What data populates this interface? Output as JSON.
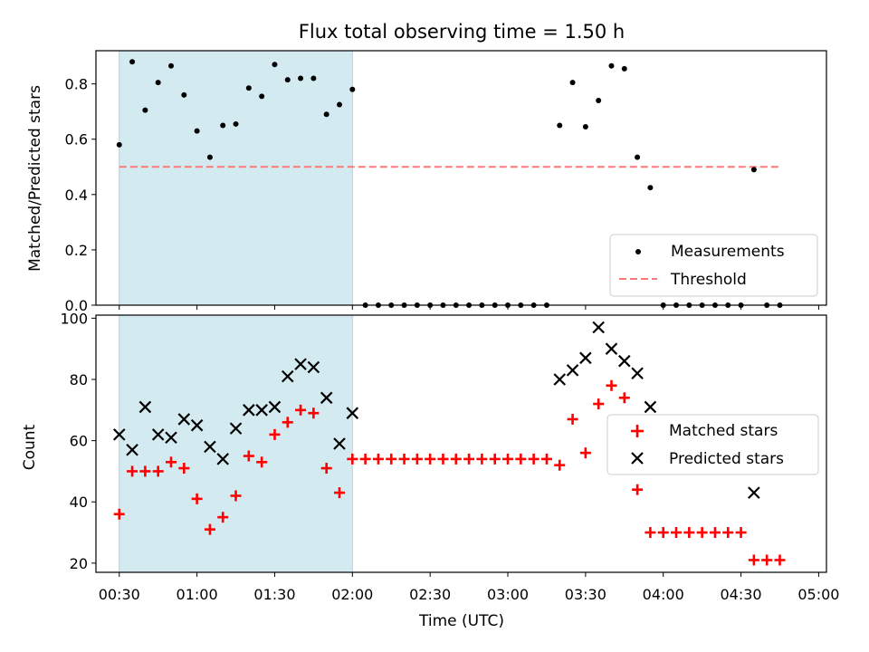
{
  "chart_data": [
    {
      "type": "scatter",
      "title": "Flux total observing time = 1.50 h",
      "xlabel": "",
      "ylabel": "Matched/Predicted stars",
      "ylim": [
        0,
        0.92
      ],
      "x_axis": "time",
      "x_range": [
        "00:21",
        "05:03"
      ],
      "highlight_span": [
        "00:30",
        "02:00"
      ],
      "highlight_color": "#d4eaf1",
      "series": [
        {
          "name": "Measurements",
          "marker": "dot",
          "color": "#000000",
          "x": [
            "00:30",
            "00:35",
            "00:40",
            "00:45",
            "00:50",
            "00:55",
            "01:00",
            "01:05",
            "01:10",
            "01:15",
            "01:20",
            "01:25",
            "01:30",
            "01:35",
            "01:40",
            "01:45",
            "01:50",
            "01:55",
            "02:00",
            "02:05",
            "02:10",
            "02:15",
            "02:20",
            "02:25",
            "02:30",
            "02:35",
            "02:40",
            "02:45",
            "02:50",
            "02:55",
            "03:00",
            "03:05",
            "03:10",
            "03:15",
            "03:20",
            "03:25",
            "03:30",
            "03:35",
            "03:40",
            "03:45",
            "03:50",
            "03:55",
            "04:00",
            "04:05",
            "04:10",
            "04:15",
            "04:20",
            "04:25",
            "04:30",
            "04:35",
            "04:40",
            "04:45"
          ],
          "y": [
            0.58,
            0.88,
            0.705,
            0.805,
            0.865,
            0.76,
            0.63,
            0.535,
            0.65,
            0.655,
            0.785,
            0.755,
            0.87,
            0.815,
            0.82,
            0.82,
            0.69,
            0.725,
            0.78,
            0,
            0,
            0,
            0,
            0,
            0,
            0,
            0,
            0,
            0,
            0,
            0,
            0,
            0,
            0,
            0.65,
            0.805,
            0.645,
            0.74,
            0.865,
            0.855,
            0.535,
            0.425,
            0,
            0,
            0,
            0,
            0,
            0,
            0,
            0.49,
            0,
            0
          ]
        },
        {
          "name": "Threshold",
          "style": "dashed",
          "color": "#ff7878",
          "x": [
            "00:30",
            "04:45"
          ],
          "y": [
            0.5,
            0.5
          ]
        }
      ],
      "legend": "lower-right",
      "legend_entries": [
        "Measurements",
        "Threshold"
      ]
    },
    {
      "type": "scatter",
      "title": "",
      "xlabel": "Time (UTC)",
      "ylabel": "Count",
      "ylim": [
        17,
        101
      ],
      "x_axis": "time",
      "x_range": [
        "00:21",
        "05:03"
      ],
      "x_tick_labels": [
        "00:30",
        "01:00",
        "01:30",
        "02:00",
        "02:30",
        "03:00",
        "03:30",
        "04:00",
        "04:30",
        "05:00"
      ],
      "y_tick_labels": [
        "20",
        "40",
        "60",
        "80",
        "100"
      ],
      "highlight_span": [
        "00:30",
        "02:00"
      ],
      "highlight_color": "#d4eaf1",
      "series": [
        {
          "name": "Matched stars",
          "marker": "plus",
          "color": "#ff0000",
          "x": [
            "00:30",
            "00:35",
            "00:40",
            "00:45",
            "00:50",
            "00:55",
            "01:00",
            "01:05",
            "01:10",
            "01:15",
            "01:20",
            "01:25",
            "01:30",
            "01:35",
            "01:40",
            "01:45",
            "01:50",
            "01:55",
            "02:00",
            "02:05",
            "02:10",
            "02:15",
            "02:20",
            "02:25",
            "02:30",
            "02:35",
            "02:40",
            "02:45",
            "02:50",
            "02:55",
            "03:00",
            "03:05",
            "03:10",
            "03:15",
            "03:20",
            "03:25",
            "03:30",
            "03:35",
            "03:40",
            "03:45",
            "03:50",
            "03:55",
            "04:00",
            "04:05",
            "04:10",
            "04:15",
            "04:20",
            "04:25",
            "04:30",
            "04:35",
            "04:40",
            "04:45"
          ],
          "y": [
            36,
            50,
            50,
            50,
            53,
            51,
            41,
            31,
            35,
            42,
            55,
            53,
            62,
            66,
            70,
            69,
            51,
            43,
            54,
            54,
            54,
            54,
            54,
            54,
            54,
            54,
            54,
            54,
            54,
            54,
            54,
            54,
            54,
            54,
            52,
            67,
            56,
            72,
            78,
            74,
            44,
            30,
            30,
            30,
            30,
            30,
            30,
            30,
            30,
            21,
            21,
            21
          ]
        },
        {
          "name": "Predicted stars",
          "marker": "x",
          "color": "#000000",
          "x": [
            "00:30",
            "00:35",
            "00:40",
            "00:45",
            "00:50",
            "00:55",
            "01:00",
            "01:05",
            "01:10",
            "01:15",
            "01:20",
            "01:25",
            "01:30",
            "01:35",
            "01:40",
            "01:45",
            "01:50",
            "01:55",
            "02:00",
            "03:20",
            "03:25",
            "03:30",
            "03:35",
            "03:40",
            "03:45",
            "03:50",
            "03:55",
            "04:35"
          ],
          "y": [
            62,
            57,
            71,
            62,
            61,
            67,
            65,
            58,
            54,
            64,
            70,
            70,
            71,
            81,
            85,
            84,
            74,
            59,
            69,
            80,
            83,
            87,
            97,
            90,
            86,
            82,
            71,
            43
          ]
        }
      ],
      "legend": "center-right",
      "legend_entries": [
        "Matched stars",
        "Predicted stars"
      ]
    }
  ]
}
